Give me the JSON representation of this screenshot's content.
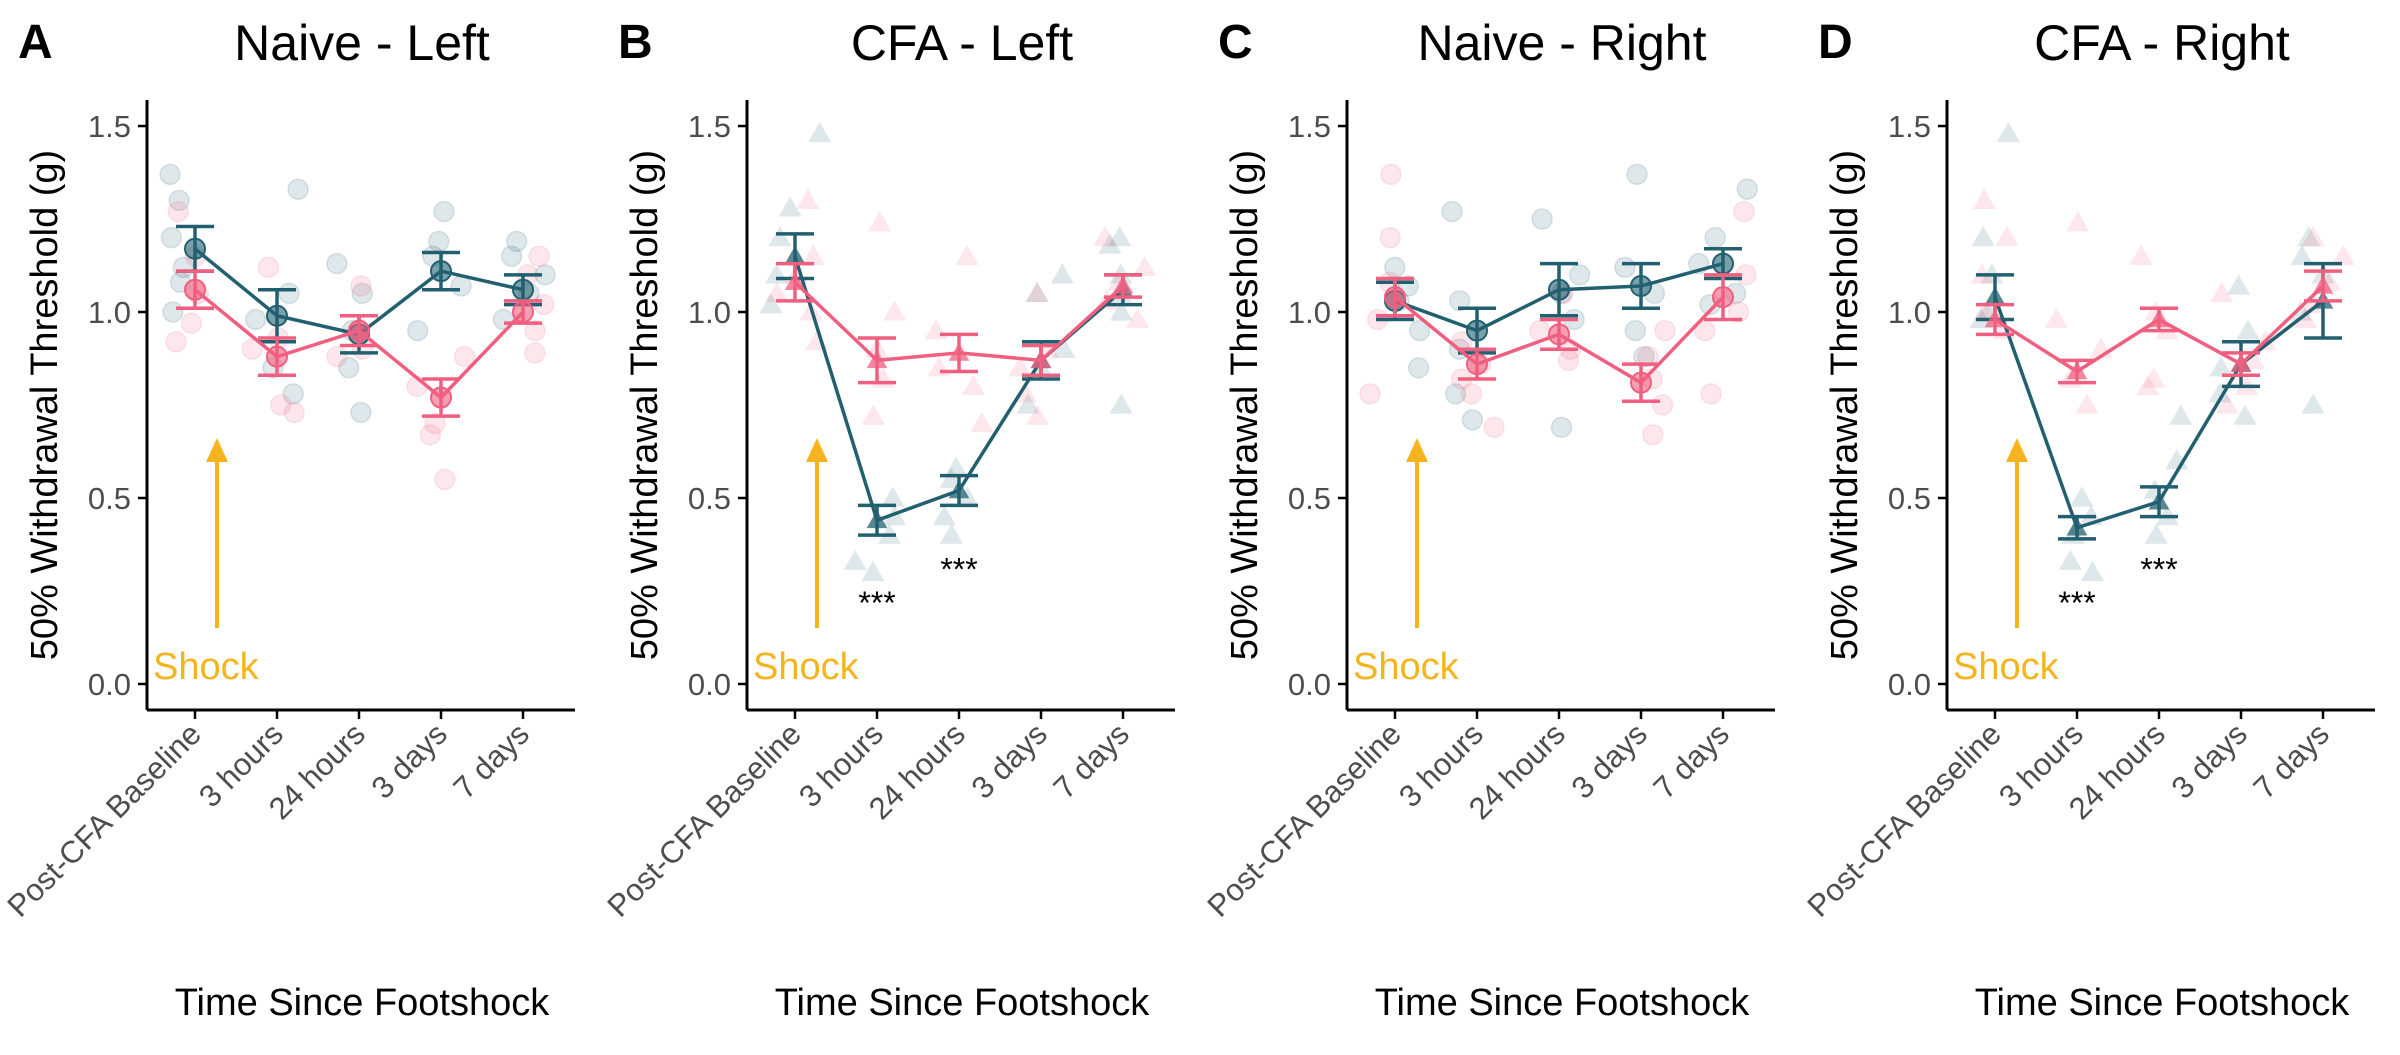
{
  "figure": {
    "colors": {
      "series_teal": "#226070",
      "series_pink": "#f05f7f",
      "shock": "#f5b41e",
      "axis": "#000000",
      "tick_text": "#4d4d4d"
    }
  },
  "chart_data": [
    {
      "type": "line",
      "panel_letter": "A",
      "title": "Naive - Left",
      "xlabel": "Time Since Footshock",
      "ylabel": "50% Withdrawal Threshold (g)",
      "ylim": [
        -0.07,
        1.57
      ],
      "yticks": [
        "0.0",
        "0.5",
        "1.0",
        "1.5"
      ],
      "categories": [
        "Post-CFA Baseline",
        "3 hours",
        "24 hours",
        "3 days",
        "7 days"
      ],
      "marker": "circle",
      "grid": false,
      "series": [
        {
          "color": "#226070",
          "values": [
            1.17,
            0.99,
            0.94,
            1.11,
            1.06
          ],
          "errors": [
            0.06,
            0.07,
            0.05,
            0.05,
            0.04
          ],
          "points": [
            [
              1.37,
              1.3,
              1.2,
              1.12,
              1.08,
              1.0
            ],
            [
              1.33,
              1.05,
              0.98,
              0.85,
              0.78
            ],
            [
              1.13,
              1.05,
              0.95,
              0.85,
              0.73
            ],
            [
              1.27,
              1.19,
              1.15,
              1.07,
              0.95
            ],
            [
              1.19,
              1.15,
              1.1,
              1.05,
              0.98
            ]
          ]
        },
        {
          "color": "#f05f7f",
          "values": [
            1.06,
            0.88,
            0.95,
            0.77,
            1.0
          ],
          "errors": [
            0.05,
            0.05,
            0.04,
            0.05,
            0.03
          ],
          "points": [
            [
              1.27,
              1.15,
              1.05,
              0.92,
              0.97
            ],
            [
              1.12,
              0.93,
              0.75,
              0.73,
              0.9
            ],
            [
              1.07,
              0.95,
              0.9,
              0.88
            ],
            [
              0.88,
              0.8,
              0.7,
              0.67,
              0.55
            ],
            [
              1.15,
              1.1,
              1.02,
              0.95,
              0.89
            ]
          ]
        }
      ],
      "annotation": {
        "text": "Shock",
        "category_index": 0
      },
      "significance": []
    },
    {
      "type": "line",
      "panel_letter": "B",
      "title": "CFA - Left",
      "xlabel": "Time Since Footshock",
      "ylabel": "50% Withdrawal Threshold (g)",
      "ylim": [
        -0.07,
        1.57
      ],
      "yticks": [
        "0.0",
        "0.5",
        "1.0",
        "1.5"
      ],
      "categories": [
        "Post-CFA Baseline",
        "3 hours",
        "24 hours",
        "3 days",
        "7 days"
      ],
      "marker": "triangle",
      "grid": false,
      "series": [
        {
          "color": "#226070",
          "values": [
            1.15,
            0.44,
            0.52,
            0.87,
            1.06
          ],
          "errors": [
            0.06,
            0.04,
            0.04,
            0.05,
            0.04
          ],
          "points": [
            [
              1.48,
              1.28,
              1.2,
              1.1,
              1.02
            ],
            [
              0.5,
              0.45,
              0.4,
              0.33,
              0.3
            ],
            [
              0.58,
              0.55,
              0.5,
              0.45,
              0.4
            ],
            [
              1.1,
              1.05,
              0.9,
              0.85,
              0.75
            ],
            [
              1.2,
              1.18,
              1.1,
              1.05,
              1.0,
              0.75
            ]
          ]
        },
        {
          "color": "#f05f7f",
          "values": [
            1.08,
            0.87,
            0.89,
            0.87,
            1.07
          ],
          "errors": [
            0.05,
            0.06,
            0.05,
            0.04,
            0.03
          ],
          "points": [
            [
              1.3,
              1.15,
              1.1,
              1.05,
              1.0,
              0.92
            ],
            [
              1.24,
              1.0,
              0.9,
              0.82,
              0.72
            ],
            [
              1.15,
              0.95,
              0.85,
              0.8,
              0.7
            ],
            [
              1.05,
              0.9,
              0.85,
              0.78,
              0.72
            ],
            [
              1.2,
              1.12,
              1.08,
              1.03,
              0.98
            ]
          ]
        }
      ],
      "annotation": {
        "text": "Shock",
        "category_index": 0
      },
      "significance": [
        {
          "text": "***",
          "category_index": 1,
          "y": 0.22
        },
        {
          "text": "***",
          "category_index": 2,
          "y": 0.31
        }
      ]
    },
    {
      "type": "line",
      "panel_letter": "C",
      "title": "Naive - Right",
      "xlabel": "Time Since Footshock",
      "ylabel": "50% Withdrawal Threshold (g)",
      "ylim": [
        -0.07,
        1.57
      ],
      "yticks": [
        "0.0",
        "0.5",
        "1.0",
        "1.5"
      ],
      "categories": [
        "Post-CFA Baseline",
        "3 hours",
        "24 hours",
        "3 days",
        "7 days"
      ],
      "marker": "circle",
      "grid": false,
      "series": [
        {
          "color": "#226070",
          "values": [
            1.03,
            0.95,
            1.06,
            1.07,
            1.13
          ],
          "errors": [
            0.05,
            0.06,
            0.07,
            0.06,
            0.04
          ],
          "points": [
            [
              1.12,
              1.07,
              1.03,
              0.95,
              0.85
            ],
            [
              1.27,
              1.03,
              0.9,
              0.78,
              0.71
            ],
            [
              1.25,
              1.1,
              1.05,
              0.98,
              0.69
            ],
            [
              1.37,
              1.12,
              1.05,
              0.95,
              0.88
            ],
            [
              1.33,
              1.2,
              1.13,
              1.05,
              1.02
            ]
          ]
        },
        {
          "color": "#f05f7f",
          "values": [
            1.04,
            0.86,
            0.94,
            0.81,
            1.04
          ],
          "errors": [
            0.05,
            0.04,
            0.04,
            0.05,
            0.06
          ],
          "points": [
            [
              1.37,
              1.2,
              1.08,
              0.98,
              0.78
            ],
            [
              0.92,
              0.86,
              0.82,
              0.78,
              0.69
            ],
            [
              1.05,
              0.95,
              0.9,
              0.87
            ],
            [
              0.95,
              0.88,
              0.82,
              0.75,
              0.67
            ],
            [
              1.27,
              1.1,
              1.0,
              0.95,
              0.78
            ]
          ]
        }
      ],
      "annotation": {
        "text": "Shock",
        "category_index": 0
      },
      "significance": []
    },
    {
      "type": "line",
      "panel_letter": "D",
      "title": "CFA - Right",
      "xlabel": "Time Since Footshock",
      "ylabel": "50% Withdrawal Threshold (g)",
      "ylim": [
        -0.07,
        1.57
      ],
      "yticks": [
        "0.0",
        "0.5",
        "1.0",
        "1.5"
      ],
      "categories": [
        "Post-CFA Baseline",
        "3 hours",
        "24 hours",
        "3 days",
        "7 days"
      ],
      "marker": "triangle",
      "grid": false,
      "series": [
        {
          "color": "#226070",
          "values": [
            1.04,
            0.42,
            0.49,
            0.86,
            1.03
          ],
          "errors": [
            0.06,
            0.03,
            0.04,
            0.06,
            0.1
          ],
          "points": [
            [
              1.48,
              1.2,
              1.1,
              1.0,
              0.98
            ],
            [
              0.5,
              0.45,
              0.4,
              0.33,
              0.3
            ],
            [
              0.72,
              0.6,
              0.52,
              0.45,
              0.4
            ],
            [
              1.07,
              0.95,
              0.85,
              0.78,
              0.72
            ],
            [
              1.2,
              1.15,
              1.1,
              1.0,
              0.75
            ]
          ]
        },
        {
          "color": "#f05f7f",
          "values": [
            0.98,
            0.84,
            0.98,
            0.86,
            1.07
          ],
          "errors": [
            0.04,
            0.03,
            0.03,
            0.03,
            0.04
          ],
          "points": [
            [
              1.3,
              1.2,
              1.1,
              1.0,
              0.95
            ],
            [
              1.24,
              0.98,
              0.9,
              0.82,
              0.75
            ],
            [
              1.15,
              1.0,
              0.95,
              0.82,
              0.8
            ],
            [
              1.05,
              0.92,
              0.87,
              0.8,
              0.75
            ],
            [
              1.2,
              1.15,
              1.08,
              1.02,
              0.98
            ]
          ]
        }
      ],
      "annotation": {
        "text": "Shock",
        "category_index": 0
      },
      "significance": [
        {
          "text": "***",
          "category_index": 1,
          "y": 0.22
        },
        {
          "text": "***",
          "category_index": 2,
          "y": 0.31
        }
      ]
    }
  ]
}
